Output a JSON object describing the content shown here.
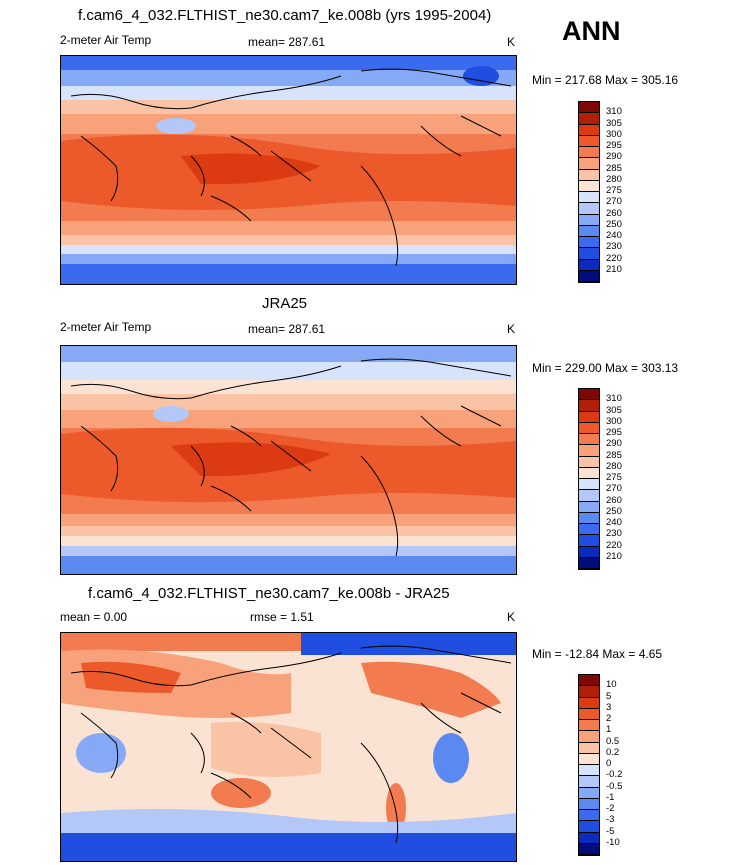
{
  "season": "ANN",
  "palette_abs": [
    "#000d7a",
    "#0a2bbd",
    "#1f4ee0",
    "#3a6aed",
    "#5b89f2",
    "#86a9f5",
    "#b3c8f8",
    "#d7e3fb",
    "#fbe3d3",
    "#fac3a6",
    "#f7a27b",
    "#f27b50",
    "#ec5a2b",
    "#dc3a12",
    "#b11f07",
    "#7e0803"
  ],
  "palette_diff": [
    "#000d7a",
    "#0a2bbd",
    "#1f4ee0",
    "#3a6aed",
    "#5b89f2",
    "#86a9f5",
    "#b3c8f8",
    "#d7e3fb",
    "#fbe3d3",
    "#fac3a6",
    "#f7a27b",
    "#f27b50",
    "#ec5a2b",
    "#dc3a12",
    "#b11f07",
    "#7e0803"
  ],
  "panels": [
    {
      "title": "f.cam6_4_032.FLTHIST_ne30.cam7_ke.008b (yrs 1995-2004)",
      "left_label": "2-meter Air Temp",
      "center_label": "mean= 287.61",
      "units": "K",
      "minmax": "Min = 217.68 Max = 305.16",
      "colorbar_ticks": [
        "310",
        "305",
        "300",
        "295",
        "290",
        "285",
        "280",
        "275",
        "270",
        "260",
        "250",
        "240",
        "230",
        "220",
        "210"
      ]
    },
    {
      "title": "JRA25",
      "left_label": "2-meter Air Temp",
      "center_label": "mean= 287.61",
      "units": "K",
      "minmax": "Min = 229.00 Max = 303.13",
      "colorbar_ticks": [
        "310",
        "305",
        "300",
        "295",
        "290",
        "285",
        "280",
        "275",
        "270",
        "260",
        "250",
        "240",
        "230",
        "220",
        "210"
      ]
    },
    {
      "title": "f.cam6_4_032.FLTHIST_ne30.cam7_ke.008b - JRA25",
      "left_label": "mean =   0.00",
      "center_label": "rmse =   1.51",
      "units": "K",
      "minmax": "Min = -12.84 Max =   4.65",
      "colorbar_ticks": [
        "10",
        "5",
        "3",
        "2",
        "1",
        "0.5",
        "0.2",
        "0",
        "-0.2",
        "-0.5",
        "-1",
        "-2",
        "-3",
        "-5",
        "-10"
      ]
    }
  ]
}
